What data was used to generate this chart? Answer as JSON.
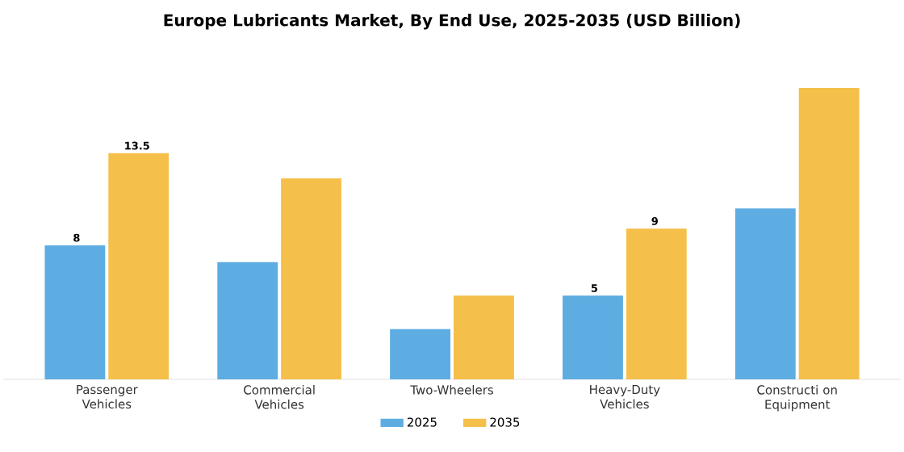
{
  "chart_data": {
    "type": "bar",
    "title": "Europe Lubricants Market, By End Use, 2025-2035 (USD Billion)",
    "categories": [
      "Passenger Vehicles",
      "Commercial Vehicles",
      "Two-Wheelers",
      "Heavy-Duty Vehicles",
      "Constructi on Equipment"
    ],
    "series": [
      {
        "name": "2025",
        "color": "#5dade2",
        "values": [
          8,
          7.0,
          3.0,
          5,
          10.2
        ],
        "value_labels": [
          "8",
          null,
          null,
          "5",
          null
        ]
      },
      {
        "name": "2035",
        "color": "#f5c04a",
        "values": [
          13.5,
          12.0,
          5.0,
          9,
          17.4
        ],
        "value_labels": [
          "13.5",
          null,
          null,
          "9",
          null
        ]
      }
    ],
    "legend": "bottom"
  }
}
